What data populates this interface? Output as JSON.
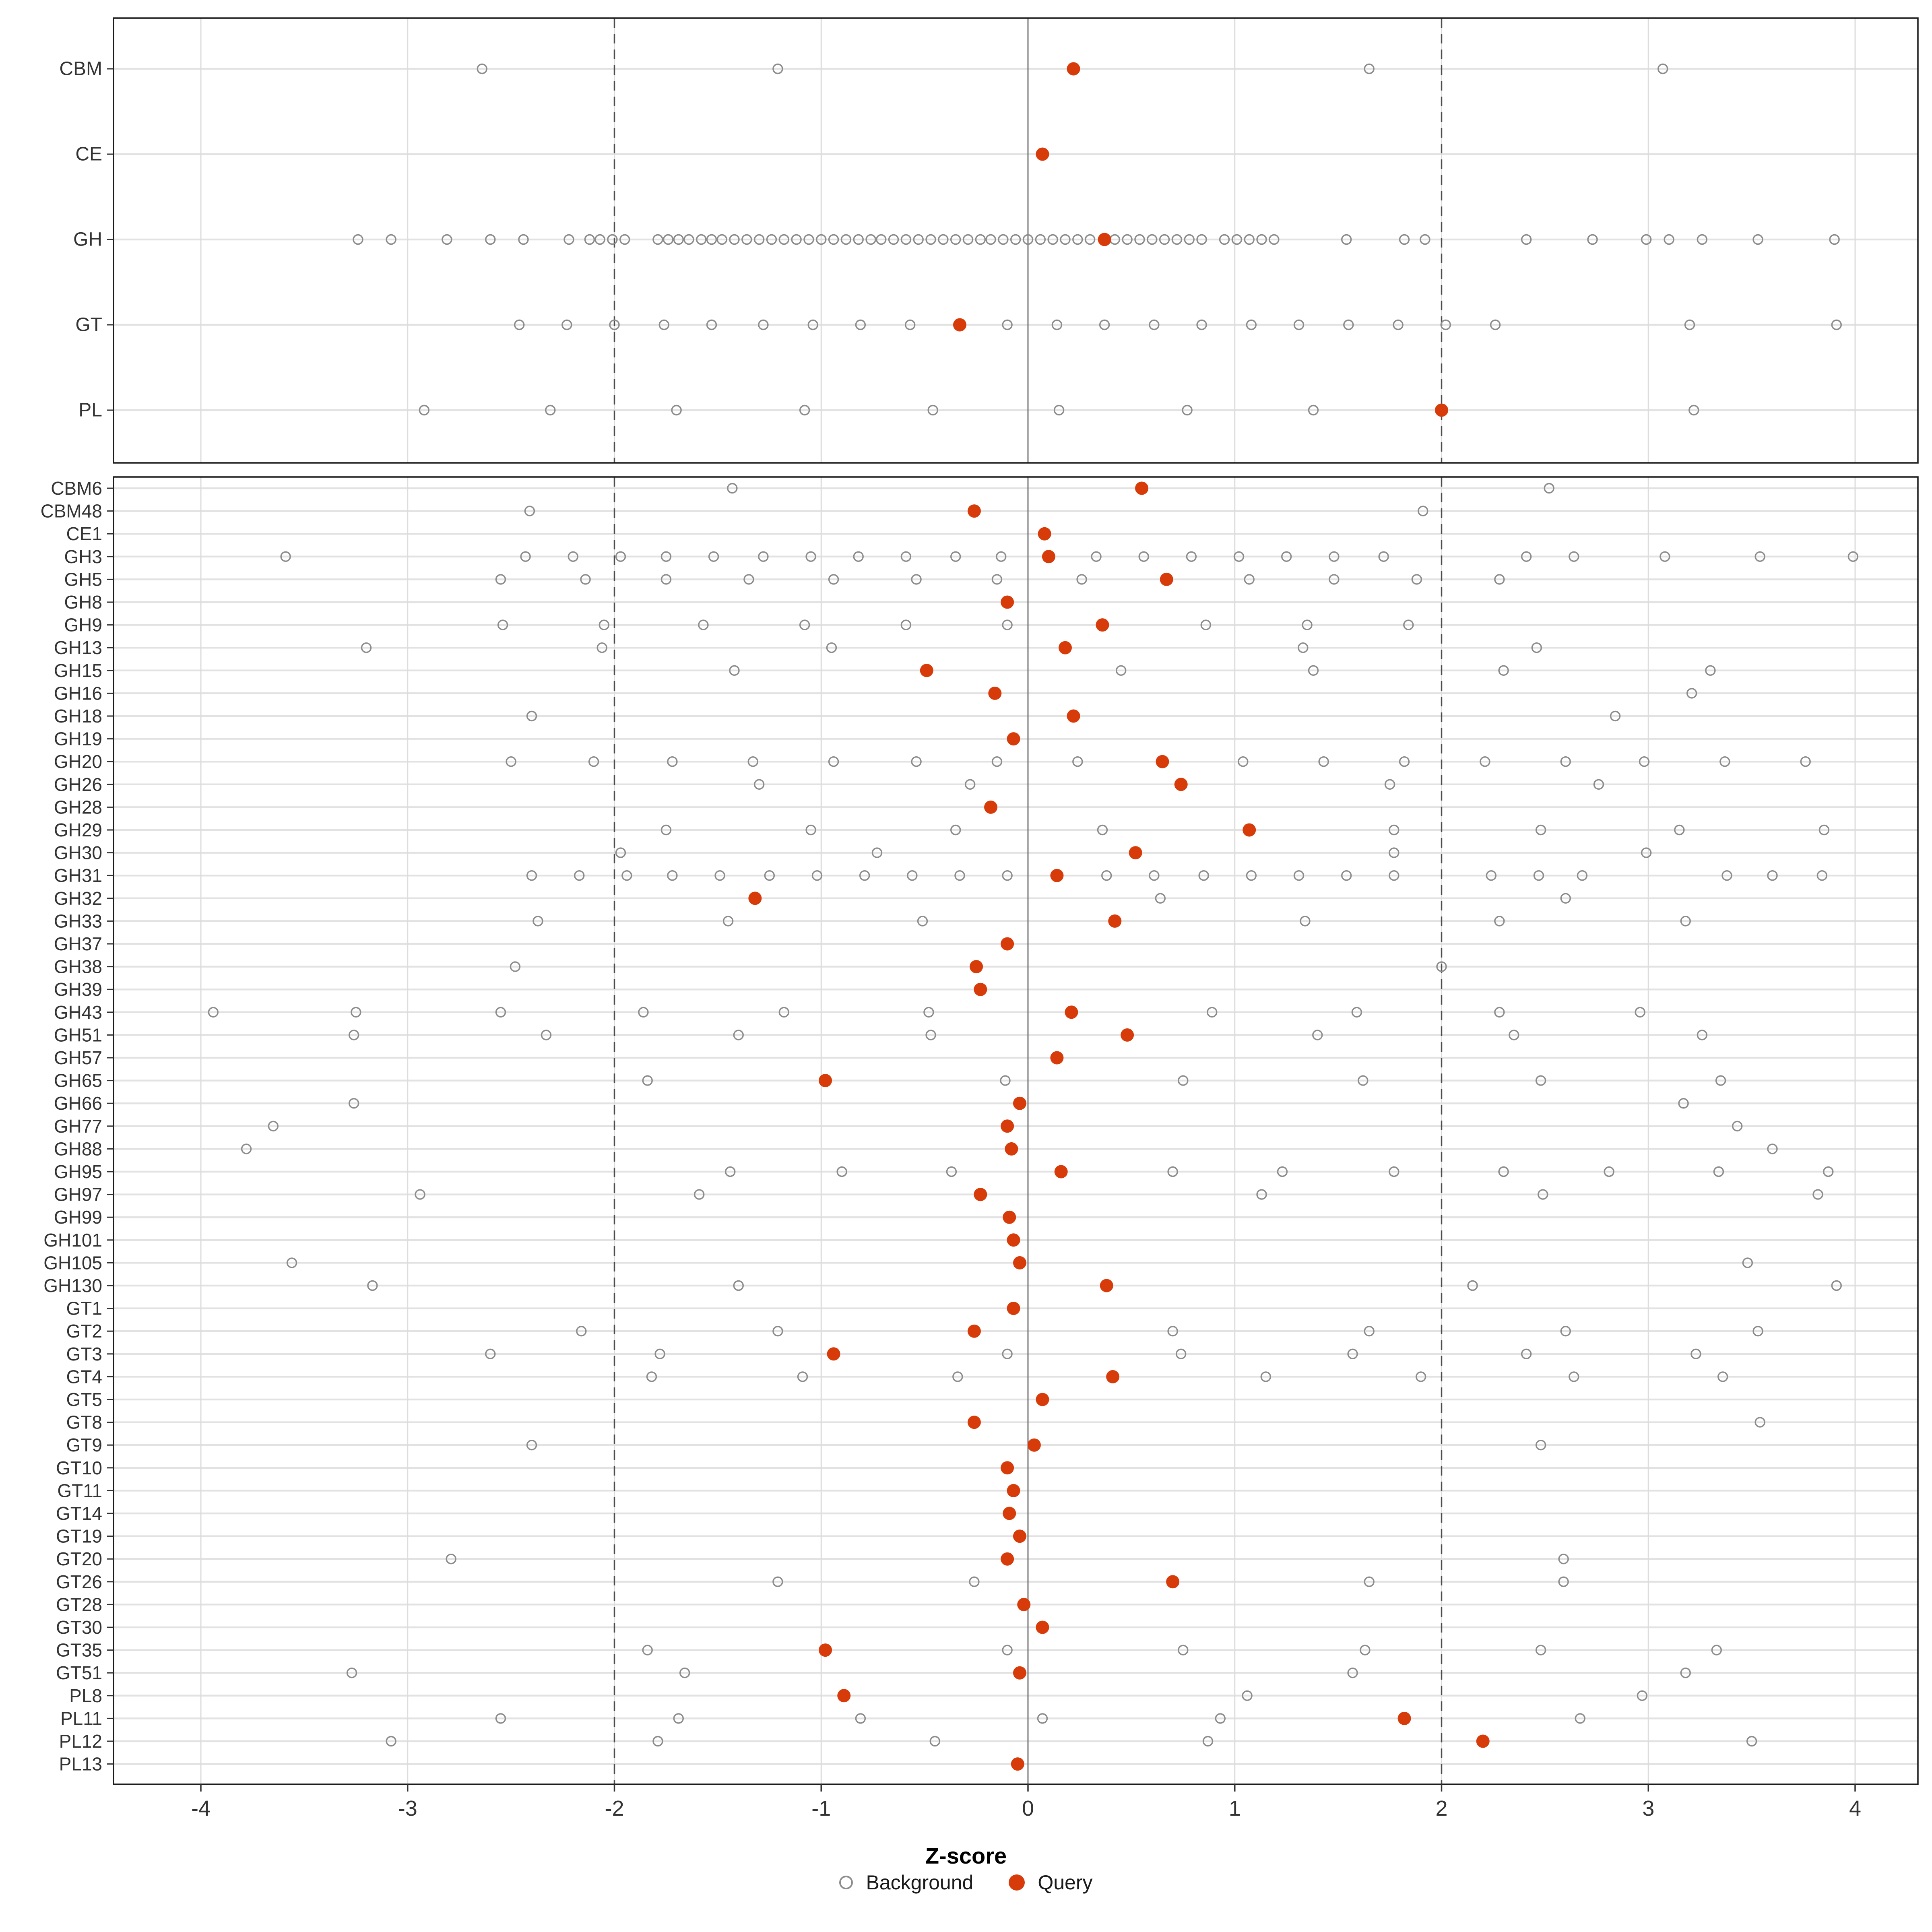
{
  "axis": {
    "label": "Z-score",
    "ticks": [
      -4,
      -3,
      -2,
      -1,
      0,
      1,
      2,
      3,
      4
    ],
    "xlim": [
      -4.42,
      4.3
    ],
    "reference_lines": {
      "dashed": [
        -2,
        2
      ],
      "solid": [
        0
      ]
    },
    "grid": "on"
  },
  "legend": {
    "background_label": "Background",
    "query_label": "Query",
    "position": "bottom-center"
  },
  "colors": {
    "query": "#D73B09",
    "background_stroke": "#8C8C8C",
    "row_gridline": "#E2E2E2",
    "x_gridline": "#DCDCDC",
    "reference_line": "#4D4D4D",
    "panel_border": "#1A1A1A",
    "tick_text": "#333333",
    "row_label_text": "#333333"
  },
  "chart_data": [
    {
      "type": "scatter",
      "panel": "top",
      "xlabel": "Z-score",
      "series_names": [
        "Background",
        "Query"
      ],
      "rows": [
        {
          "label": "CBM",
          "background": [
            -2.64,
            -1.21,
            1.65,
            3.07
          ],
          "query": 0.22
        },
        {
          "label": "CE",
          "background": [],
          "query": 0.07
        },
        {
          "label": "GH",
          "background": [
            -3.24,
            -3.08,
            -2.81,
            -2.6,
            -2.44,
            -2.22,
            -2.12,
            -2.07,
            -2.01,
            -1.95,
            -1.79,
            -1.74,
            -1.69,
            -1.64,
            -1.58,
            -1.53,
            -1.48,
            -1.42,
            -1.36,
            -1.3,
            -1.24,
            -1.18,
            -1.12,
            -1.06,
            -1.0,
            -0.94,
            -0.88,
            -0.82,
            -0.76,
            -0.71,
            -0.65,
            -0.59,
            -0.53,
            -0.47,
            -0.41,
            -0.35,
            -0.29,
            -0.23,
            -0.18,
            -0.12,
            -0.06,
            0.0,
            0.06,
            0.12,
            0.18,
            0.24,
            0.3,
            0.42,
            0.48,
            0.54,
            0.6,
            0.66,
            0.72,
            0.78,
            0.84,
            0.95,
            1.01,
            1.07,
            1.13,
            1.19,
            1.54,
            1.82,
            1.92,
            2.41,
            2.73,
            2.99,
            3.1,
            3.26,
            3.53,
            3.9
          ],
          "query": 0.37
        },
        {
          "label": "GT",
          "background": [
            -2.46,
            -2.23,
            -2.0,
            -1.76,
            -1.53,
            -1.28,
            -1.04,
            -0.81,
            -0.57,
            -0.1,
            0.14,
            0.37,
            0.61,
            0.84,
            1.08,
            1.31,
            1.55,
            1.79,
            2.02,
            2.26,
            3.2,
            3.91
          ],
          "query": -0.33
        },
        {
          "label": "PL",
          "background": [
            -2.92,
            -2.31,
            -1.7,
            -1.08,
            -0.46,
            0.15,
            0.77,
            1.38,
            3.22
          ],
          "query": 2.0
        }
      ]
    },
    {
      "type": "scatter",
      "panel": "bottom",
      "xlabel": "Z-score",
      "series_names": [
        "Background",
        "Query"
      ],
      "rows": [
        {
          "label": "CBM6",
          "background": [
            -1.43,
            2.52
          ],
          "query": 0.55
        },
        {
          "label": "CBM48",
          "background": [
            -2.41,
            1.91
          ],
          "query": -0.26
        },
        {
          "label": "CE1",
          "background": [],
          "query": 0.08
        },
        {
          "label": "GH3",
          "background": [
            -3.59,
            -2.43,
            -2.2,
            -1.97,
            -1.75,
            -1.52,
            -1.28,
            -1.05,
            -0.82,
            -0.59,
            -0.35,
            -0.13,
            0.33,
            0.56,
            0.79,
            1.02,
            1.25,
            1.48,
            1.72,
            2.41,
            2.64,
            3.08,
            3.54,
            3.99
          ],
          "query": 0.1
        },
        {
          "label": "GH5",
          "background": [
            -2.55,
            -2.14,
            -1.75,
            -1.35,
            -0.94,
            -0.54,
            -0.15,
            0.26,
            1.07,
            1.48,
            1.88,
            2.28
          ],
          "query": 0.67
        },
        {
          "label": "GH8",
          "background": [],
          "query": -0.1
        },
        {
          "label": "GH9",
          "background": [
            -2.54,
            -2.05,
            -1.57,
            -1.08,
            -0.59,
            -0.1,
            0.86,
            1.35,
            1.84
          ],
          "query": 0.36
        },
        {
          "label": "GH13",
          "background": [
            -3.2,
            -2.06,
            -0.95,
            1.33,
            2.46
          ],
          "query": 0.18
        },
        {
          "label": "GH15",
          "background": [
            -1.42,
            0.45,
            1.38,
            2.3,
            3.3
          ],
          "query": -0.49
        },
        {
          "label": "GH16",
          "background": [
            3.21
          ],
          "query": -0.16
        },
        {
          "label": "GH18",
          "background": [
            -2.4,
            2.84
          ],
          "query": 0.22
        },
        {
          "label": "GH19",
          "background": [],
          "query": -0.07
        },
        {
          "label": "GH20",
          "background": [
            -2.5,
            -2.1,
            -1.72,
            -1.33,
            -0.94,
            -0.54,
            -0.15,
            0.24,
            1.04,
            1.43,
            1.82,
            2.21,
            2.6,
            2.98,
            3.37,
            3.76
          ],
          "query": 0.65
        },
        {
          "label": "GH26",
          "background": [
            -1.3,
            -0.28,
            1.75,
            2.76
          ],
          "query": 0.74
        },
        {
          "label": "GH28",
          "background": [],
          "query": -0.18
        },
        {
          "label": "GH29",
          "background": [
            -1.75,
            -1.05,
            -0.35,
            0.36,
            1.77,
            2.48,
            3.15,
            3.85
          ],
          "query": 1.07
        },
        {
          "label": "GH30",
          "background": [
            -1.97,
            -0.73,
            1.77,
            2.99
          ],
          "query": 0.52
        },
        {
          "label": "GH31",
          "background": [
            -2.4,
            -2.17,
            -1.94,
            -1.72,
            -1.49,
            -1.25,
            -1.02,
            -0.79,
            -0.56,
            -0.33,
            -0.1,
            0.38,
            0.61,
            0.85,
            1.08,
            1.31,
            1.54,
            1.77,
            2.24,
            2.47,
            2.68,
            3.38,
            3.6,
            3.84
          ],
          "query": 0.14
        },
        {
          "label": "GH32",
          "background": [
            0.64,
            2.6
          ],
          "query": -1.32
        },
        {
          "label": "GH33",
          "background": [
            -2.37,
            -1.45,
            -0.51,
            1.34,
            2.28,
            3.18
          ],
          "query": 0.42
        },
        {
          "label": "GH37",
          "background": [],
          "query": -0.1
        },
        {
          "label": "GH38",
          "background": [
            -2.48,
            2.0
          ],
          "query": -0.25
        },
        {
          "label": "GH39",
          "background": [],
          "query": -0.23
        },
        {
          "label": "GH43",
          "background": [
            -3.94,
            -3.25,
            -2.55,
            -1.86,
            -1.18,
            -0.48,
            0.89,
            1.59,
            2.28,
            2.96
          ],
          "query": 0.21
        },
        {
          "label": "GH51",
          "background": [
            -3.26,
            -2.33,
            -1.4,
            -0.47,
            1.4,
            2.35,
            3.26
          ],
          "query": 0.48
        },
        {
          "label": "GH57",
          "background": [],
          "query": 0.14
        },
        {
          "label": "GH65",
          "background": [
            -1.84,
            -0.11,
            0.75,
            1.62,
            2.48,
            3.35
          ],
          "query": -0.98
        },
        {
          "label": "GH66",
          "background": [
            -3.26,
            3.17
          ],
          "query": -0.04
        },
        {
          "label": "GH77",
          "background": [
            -3.65,
            3.43
          ],
          "query": -0.1
        },
        {
          "label": "GH88",
          "background": [
            -3.78,
            3.6
          ],
          "query": -0.08
        },
        {
          "label": "GH95",
          "background": [
            -1.44,
            -0.9,
            -0.37,
            0.7,
            1.23,
            1.77,
            2.3,
            2.81,
            3.34,
            3.87
          ],
          "query": 0.16
        },
        {
          "label": "GH97",
          "background": [
            -2.94,
            -1.59,
            1.13,
            2.49,
            3.82
          ],
          "query": -0.23
        },
        {
          "label": "GH99",
          "background": [],
          "query": -0.09
        },
        {
          "label": "GH101",
          "background": [],
          "query": -0.07
        },
        {
          "label": "GH105",
          "background": [
            -3.56,
            3.48
          ],
          "query": -0.04
        },
        {
          "label": "GH130",
          "background": [
            -3.17,
            -1.4,
            2.15,
            3.91
          ],
          "query": 0.38
        },
        {
          "label": "GT1",
          "background": [],
          "query": -0.07
        },
        {
          "label": "GT2",
          "background": [
            -2.16,
            -1.21,
            0.7,
            1.65,
            2.6,
            3.53
          ],
          "query": -0.26
        },
        {
          "label": "GT3",
          "background": [
            -2.6,
            -1.78,
            -0.1,
            0.74,
            1.57,
            2.41,
            3.23
          ],
          "query": -0.94
        },
        {
          "label": "GT4",
          "background": [
            -1.82,
            -1.09,
            -0.34,
            1.15,
            1.9,
            2.64,
            3.36
          ],
          "query": 0.41
        },
        {
          "label": "GT5",
          "background": [],
          "query": 0.07
        },
        {
          "label": "GT8",
          "background": [
            3.54
          ],
          "query": -0.26
        },
        {
          "label": "GT9",
          "background": [
            -2.4,
            2.48
          ],
          "query": 0.03
        },
        {
          "label": "GT10",
          "background": [],
          "query": -0.1
        },
        {
          "label": "GT11",
          "background": [],
          "query": -0.07
        },
        {
          "label": "GT14",
          "background": [],
          "query": -0.09
        },
        {
          "label": "GT19",
          "background": [],
          "query": -0.04
        },
        {
          "label": "GT20",
          "background": [
            -2.79,
            2.59
          ],
          "query": -0.1
        },
        {
          "label": "GT26",
          "background": [
            -1.21,
            -0.26,
            1.65,
            2.59
          ],
          "query": 0.7
        },
        {
          "label": "GT28",
          "background": [],
          "query": -0.02
        },
        {
          "label": "GT30",
          "background": [],
          "query": 0.07
        },
        {
          "label": "GT35",
          "background": [
            -1.84,
            -0.1,
            0.75,
            1.63,
            2.48,
            3.33
          ],
          "query": -0.98
        },
        {
          "label": "GT51",
          "background": [
            -3.27,
            -1.66,
            1.57,
            3.18
          ],
          "query": -0.04
        },
        {
          "label": "PL8",
          "background": [
            1.06,
            2.97
          ],
          "query": -0.89
        },
        {
          "label": "PL11",
          "background": [
            -2.55,
            -1.69,
            -0.81,
            0.07,
            0.93,
            2.67
          ],
          "query": 1.82
        },
        {
          "label": "PL12",
          "background": [
            -3.08,
            -1.79,
            -0.45,
            0.87,
            3.5
          ],
          "query": 2.2
        },
        {
          "label": "PL13",
          "background": [],
          "query": -0.05
        }
      ]
    }
  ]
}
